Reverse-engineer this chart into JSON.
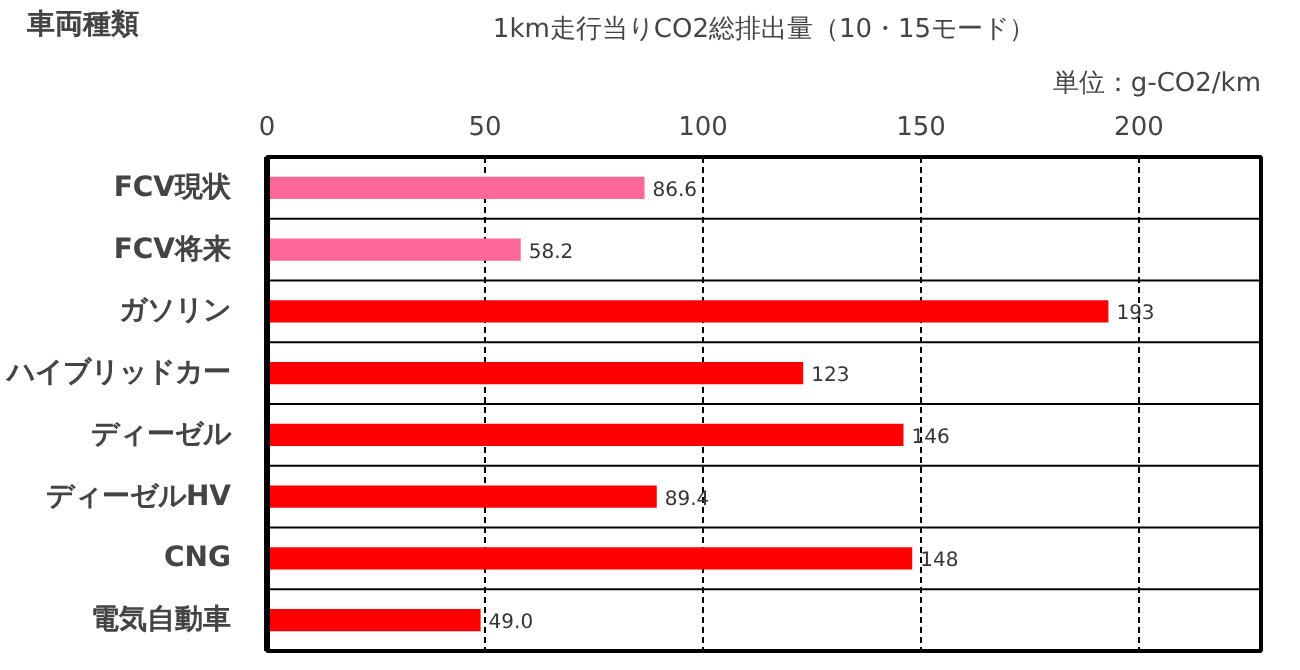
{
  "chart_data": {
    "type": "bar",
    "orientation": "horizontal",
    "title": "1km走行当りCO2総排出量（10・15モード）",
    "subtitle": "単位：g-CO2/km",
    "ylabel": "車両種類",
    "categories": [
      "FCV現状",
      "FCV将来",
      "ガソリン",
      "ハイブリッドカー",
      "ディーゼル",
      "ディーゼルHV",
      "CNG",
      "電気自動車"
    ],
    "values": [
      86.6,
      58.2,
      193,
      123,
      146,
      89.4,
      148,
      49.0
    ],
    "value_labels": [
      "86.6",
      "58.2",
      "193",
      "123",
      "146",
      "89.4",
      "148",
      "49.0"
    ],
    "colors": [
      "#ff6699",
      "#ff6699",
      "#ff0000",
      "#ff0000",
      "#ff0000",
      "#ff0000",
      "#ff0000",
      "#ff0000"
    ],
    "xlim": [
      0,
      228
    ],
    "xticks": [
      0,
      50,
      100,
      150,
      200
    ],
    "grid": "x"
  }
}
